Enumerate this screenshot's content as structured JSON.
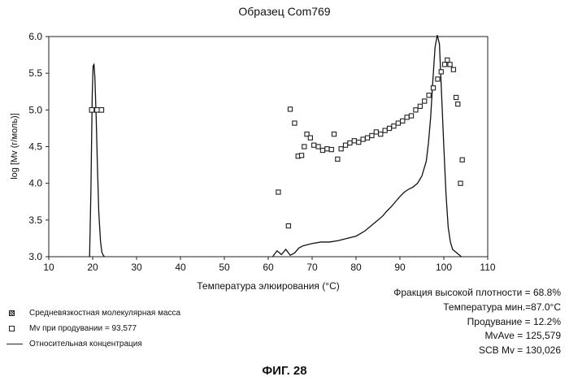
{
  "chart_data": {
    "type": "scatter",
    "title": "Образец Com769",
    "xlabel": "Температура элюирования (°C)",
    "ylabel": "log [Mv (г/моль)]",
    "xlim": [
      10,
      110
    ],
    "ylim": [
      3.0,
      6.0
    ],
    "xticks": [
      "10",
      "20",
      "30",
      "40",
      "50",
      "60",
      "70",
      "80",
      "90",
      "100",
      "110"
    ],
    "yticks": [
      "3.0",
      "3.5",
      "4.0",
      "4.5",
      "5.0",
      "5.5",
      "6.0"
    ],
    "series": [
      {
        "name": "Средневязкостная молекулярная масса",
        "kind": "points",
        "points": [
          [
            62.3,
            3.88
          ],
          [
            64.6,
            3.42
          ],
          [
            65.0,
            5.01
          ],
          [
            66.0,
            4.82
          ],
          [
            66.8,
            4.37
          ],
          [
            67.6,
            4.38
          ],
          [
            68.2,
            4.5
          ],
          [
            68.8,
            4.67
          ],
          [
            69.6,
            4.62
          ],
          [
            70.4,
            4.52
          ],
          [
            71.4,
            4.5
          ],
          [
            72.4,
            4.45
          ],
          [
            73.4,
            4.47
          ],
          [
            74.4,
            4.46
          ],
          [
            75.0,
            4.67
          ],
          [
            75.8,
            4.33
          ],
          [
            76.6,
            4.47
          ],
          [
            77.6,
            4.52
          ],
          [
            78.6,
            4.55
          ],
          [
            79.6,
            4.58
          ],
          [
            80.6,
            4.56
          ],
          [
            81.6,
            4.6
          ],
          [
            82.6,
            4.62
          ],
          [
            83.6,
            4.65
          ],
          [
            84.6,
            4.7
          ],
          [
            85.6,
            4.67
          ],
          [
            86.6,
            4.72
          ],
          [
            87.6,
            4.75
          ],
          [
            88.6,
            4.78
          ],
          [
            89.6,
            4.82
          ],
          [
            90.6,
            4.85
          ],
          [
            91.6,
            4.9
          ],
          [
            92.6,
            4.92
          ],
          [
            93.6,
            5.0
          ],
          [
            94.6,
            5.05
          ],
          [
            95.6,
            5.12
          ],
          [
            96.6,
            5.2
          ],
          [
            97.6,
            5.3
          ],
          [
            98.6,
            5.42
          ],
          [
            99.4,
            5.52
          ],
          [
            100.2,
            5.62
          ],
          [
            100.8,
            5.68
          ],
          [
            101.4,
            5.62
          ],
          [
            102.2,
            5.55
          ],
          [
            102.8,
            5.17
          ],
          [
            103.2,
            5.08
          ],
          [
            103.8,
            4.0
          ],
          [
            104.2,
            4.32
          ]
        ]
      },
      {
        "name": "Mv при продувании  = 93,577",
        "kind": "points",
        "points": [
          [
            19.8,
            5.0
          ],
          [
            21.0,
            5.0
          ],
          [
            22.0,
            5.0
          ]
        ]
      },
      {
        "name": "Относительная концентрация",
        "kind": "line",
        "x": [
          19.3,
          19.6,
          19.9,
          20.1,
          20.3,
          20.5,
          20.8,
          21.1,
          21.4,
          21.8,
          22.1,
          22.4,
          22.7,
          61.0,
          62.0,
          63.0,
          64.0,
          65.0,
          66.0,
          67.0,
          68.0,
          70.0,
          72.0,
          74.0,
          76.0,
          78.0,
          80.0,
          82.0,
          84.0,
          86.0,
          87.0,
          88.0,
          89.0,
          90.0,
          91.0,
          92.0,
          93.0,
          94.0,
          95.0,
          96.0,
          96.5,
          97.0,
          97.5,
          98.0,
          98.5,
          99.0,
          99.5,
          100.0,
          100.5,
          101.0,
          101.5,
          102.0,
          103.0,
          104.0
        ],
        "y": [
          3.0,
          3.9,
          5.2,
          5.6,
          5.62,
          5.45,
          4.9,
          4.2,
          3.6,
          3.2,
          3.06,
          3.02,
          3.0,
          3.0,
          3.08,
          3.03,
          3.1,
          3.02,
          3.05,
          3.12,
          3.15,
          3.18,
          3.2,
          3.2,
          3.22,
          3.25,
          3.28,
          3.35,
          3.45,
          3.55,
          3.62,
          3.68,
          3.75,
          3.82,
          3.88,
          3.92,
          3.95,
          4.0,
          4.1,
          4.3,
          4.55,
          4.9,
          5.4,
          5.85,
          6.02,
          5.9,
          5.2,
          4.5,
          3.85,
          3.4,
          3.2,
          3.1,
          3.05,
          3.0
        ]
      }
    ]
  },
  "legend": {
    "mv_avg": "Средневязкостная молекулярная масса",
    "mv_purge": "Mv при продувании  = 93,577",
    "rel_conc": "Относительная концентрация"
  },
  "stats": {
    "hd_fraction": "Фракция высокой плотности = 68.8%",
    "temp_min": "Температура мин.=87.0°C",
    "purge": "Продувание = 12.2%",
    "mvave": "MvAve = 125,579",
    "scb_mv": "SCB Mv = 130,026"
  },
  "figure_label": "ФИГ. 28"
}
